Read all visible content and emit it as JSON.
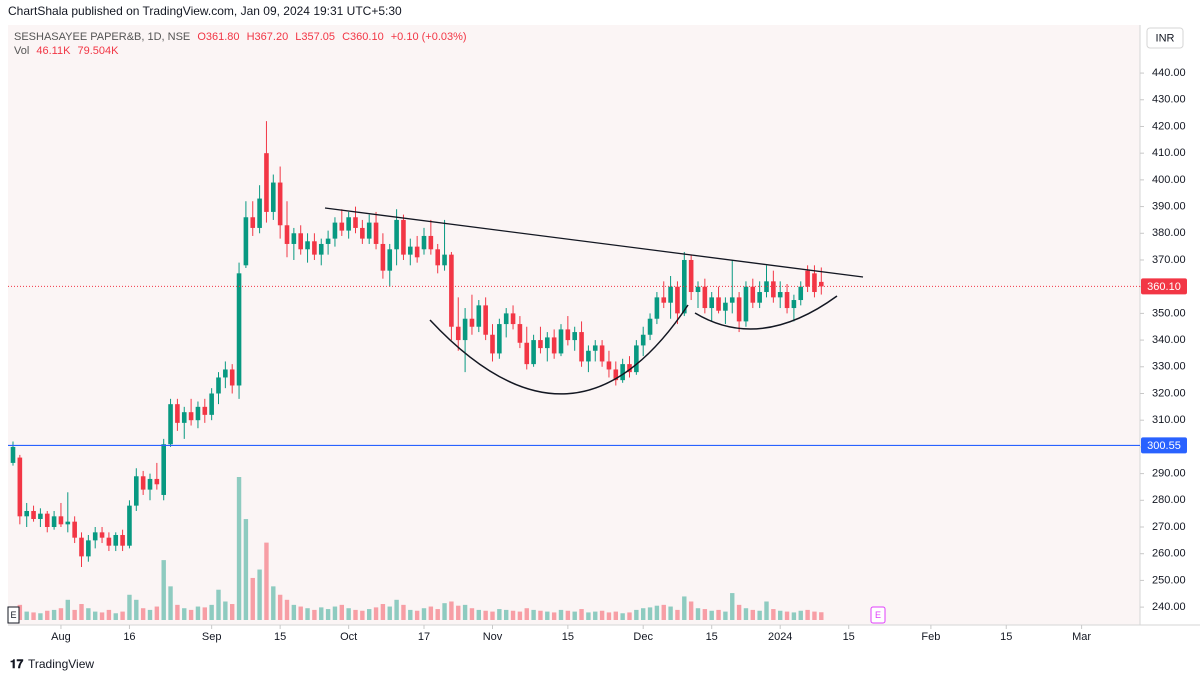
{
  "header": {
    "publisher": "ChartShala published on TradingView.com, Jan 09, 2024 19:31 UTC+5:30",
    "symbol": "SESHASAYEE PAPER&B, 1D, NSE",
    "open": "O361.80",
    "high": "H367.20",
    "low": "L357.05",
    "close": "C360.10",
    "change": "+0.10 (+0.03%)",
    "vol_label": "Vol",
    "volume": "46.11K",
    "volume_ma": "79.504K"
  },
  "currency": "INR",
  "footer": "TradingView",
  "earnings_markers": [
    "E",
    "E"
  ],
  "chart_data": {
    "type": "candlestick",
    "up_color": "#089981",
    "down_color": "#f23645",
    "grid": false,
    "ylim": [
      233.3,
      458
    ],
    "yticks": [
      {
        "value": 240,
        "label": "240.00"
      },
      {
        "value": 250,
        "label": "250.00"
      },
      {
        "value": 260,
        "label": "260.00"
      },
      {
        "value": 270,
        "label": "270.00"
      },
      {
        "value": 280,
        "label": "280.00"
      },
      {
        "value": 290,
        "label": "290.00"
      },
      {
        "value": 300,
        "label": "300.00"
      },
      {
        "value": 310,
        "label": "310.00"
      },
      {
        "value": 320,
        "label": "320.00"
      },
      {
        "value": 330,
        "label": "330.00"
      },
      {
        "value": 340,
        "label": "340.00"
      },
      {
        "value": 350,
        "label": "350.00"
      },
      {
        "value": 360,
        "label": "360.00"
      },
      {
        "value": 370,
        "label": "370.00"
      },
      {
        "value": 380,
        "label": "380.00"
      },
      {
        "value": 390,
        "label": "390.00"
      },
      {
        "value": 400,
        "label": "400.00"
      },
      {
        "value": 410,
        "label": "410.00"
      },
      {
        "value": 420,
        "label": "420.00"
      },
      {
        "value": 430,
        "label": "430.00"
      },
      {
        "value": 440,
        "label": "440.00"
      }
    ],
    "last_price": {
      "value": 360.1,
      "label": "360.10",
      "color": "#f23645"
    },
    "hline": {
      "value": 300.55,
      "label": "300.55",
      "color": "#2962ff"
    },
    "categories": [
      null,
      null,
      null,
      null,
      null,
      null,
      null,
      "Aug",
      null,
      null,
      null,
      null,
      null,
      null,
      null,
      null,
      null,
      "16",
      null,
      null,
      null,
      null,
      null,
      null,
      null,
      null,
      null,
      null,
      null,
      "Sep",
      null,
      null,
      null,
      null,
      null,
      null,
      null,
      null,
      null,
      "15",
      null,
      null,
      null,
      null,
      null,
      null,
      null,
      null,
      null,
      "Oct",
      null,
      null,
      null,
      null,
      null,
      null,
      null,
      null,
      null,
      null,
      "17",
      null,
      null,
      null,
      null,
      null,
      null,
      null,
      null,
      null,
      "Nov",
      null,
      null,
      null,
      null,
      null,
      null,
      null,
      null,
      null,
      null,
      "15",
      null,
      null,
      null,
      null,
      null,
      null,
      null,
      null,
      null,
      null,
      "Dec",
      null,
      null,
      null,
      null,
      null,
      null,
      null,
      null,
      null,
      "15",
      null,
      null,
      null,
      null,
      null,
      null,
      null,
      null,
      null,
      "2024",
      null,
      null,
      null,
      null,
      null,
      null,
      null,
      null,
      null,
      "15",
      null,
      null,
      null,
      null,
      null,
      null,
      null,
      null,
      null,
      null,
      null,
      "Feb",
      null,
      null,
      null,
      null,
      null,
      null,
      null,
      null,
      null,
      null,
      "15",
      null,
      null,
      null,
      null,
      null,
      null,
      null,
      null,
      null,
      null,
      "Mar",
      null,
      null,
      null
    ],
    "open": [
      294,
      296,
      274,
      276,
      273,
      275,
      270,
      274,
      271,
      272,
      266,
      259,
      265,
      268,
      266,
      263,
      267,
      263,
      278,
      289,
      284,
      288,
      282,
      301,
      316,
      309,
      313,
      310,
      315,
      312,
      320,
      326,
      329,
      323,
      368,
      386,
      382,
      410,
      388,
      399,
      383,
      376,
      380,
      374,
      377,
      372,
      376,
      378,
      384,
      381,
      386,
      382,
      378,
      384,
      376,
      366,
      374,
      385,
      372,
      375,
      374,
      379,
      374,
      368,
      372,
      345,
      340,
      348,
      345,
      353,
      342,
      335,
      346,
      350,
      346,
      339,
      331,
      340,
      337,
      341,
      335,
      344,
      340,
      343,
      332,
      336,
      338,
      332,
      329,
      325,
      331,
      328,
      338,
      342,
      348,
      356,
      354,
      360,
      350,
      370,
      358,
      360,
      352,
      356,
      351,
      354,
      356,
      347,
      360,
      354,
      358,
      362,
      356,
      358,
      352,
      355,
      366,
      365,
      361.8,
      null,
      null,
      null,
      null,
      null,
      null,
      null,
      null,
      null,
      null,
      null,
      null,
      null,
      null,
      null,
      null,
      null,
      null,
      null,
      null,
      null,
      null,
      null,
      null,
      null,
      null,
      null,
      null,
      null,
      null,
      null,
      null,
      null,
      null,
      null,
      null,
      null,
      null,
      null,
      null,
      null
    ],
    "high": [
      302,
      297,
      279,
      278,
      277,
      276,
      276,
      279,
      283,
      274,
      268,
      267,
      270,
      270,
      268,
      268,
      269,
      280,
      292,
      291,
      290,
      294,
      303,
      318,
      318,
      315,
      318,
      317,
      318,
      322,
      328,
      332,
      331,
      369,
      392,
      392,
      398,
      422,
      402,
      405,
      392,
      382,
      383,
      380,
      380,
      378,
      381,
      386,
      389,
      388,
      390,
      385,
      387,
      388,
      380,
      376,
      389,
      387,
      378,
      379,
      382,
      385,
      376,
      385,
      373,
      356,
      352,
      357,
      355,
      356,
      346,
      348,
      352,
      353,
      349,
      345,
      342,
      345,
      343,
      344,
      346,
      349,
      345,
      347,
      338,
      340,
      340,
      336,
      332,
      333,
      334,
      340,
      345,
      350,
      358,
      362,
      364,
      362,
      373,
      372,
      362,
      363,
      358,
      360,
      356,
      370,
      358,
      362,
      363,
      362,
      368,
      366,
      362,
      361,
      357,
      362,
      368,
      368,
      367.2,
      null,
      null,
      null,
      null,
      null,
      null,
      null,
      null,
      null,
      null,
      null,
      null,
      null,
      null,
      null,
      null,
      null,
      null,
      null,
      null,
      null,
      null,
      null,
      null,
      null,
      null,
      null,
      null,
      null,
      null,
      null,
      null,
      null,
      null,
      null,
      null,
      null,
      null,
      null,
      null,
      null
    ],
    "low": [
      293,
      271,
      270,
      272,
      270,
      268,
      269,
      270,
      268,
      264,
      255,
      257,
      262,
      264,
      261,
      261,
      261,
      262,
      276,
      282,
      280,
      284,
      280,
      300,
      306,
      303,
      308,
      307,
      309,
      310,
      316,
      322,
      320,
      318,
      367,
      379,
      380,
      384,
      385,
      378,
      371,
      370,
      372,
      369,
      370,
      368,
      372,
      375,
      379,
      378,
      380,
      376,
      376,
      374,
      363,
      360,
      368,
      370,
      368,
      369,
      372,
      372,
      365,
      366,
      340,
      336,
      328,
      342,
      343,
      340,
      332,
      333,
      341,
      344,
      337,
      329,
      330,
      335,
      332,
      333,
      334,
      338,
      336,
      330,
      328,
      332,
      330,
      326,
      323,
      324,
      326,
      327,
      334,
      340,
      346,
      352,
      348,
      346,
      349,
      355,
      352,
      350,
      347,
      350,
      346,
      350,
      343,
      345,
      352,
      352,
      356,
      354,
      352,
      350,
      347,
      353,
      358,
      356,
      357.05,
      null,
      null,
      null,
      null,
      null,
      null,
      null,
      null,
      null,
      null,
      null,
      null,
      null,
      null,
      null,
      null,
      null,
      null,
      null,
      null,
      null,
      null,
      null,
      null,
      null,
      null,
      null,
      null,
      null,
      null,
      null,
      null,
      null,
      null,
      null,
      null,
      null,
      null,
      null,
      null,
      null
    ],
    "close": [
      300,
      274,
      276,
      273,
      275,
      270,
      274,
      271,
      272,
      266,
      259,
      265,
      268,
      266,
      263,
      267,
      263,
      278,
      289,
      284,
      288,
      286,
      301,
      316,
      309,
      313,
      310,
      315,
      312,
      320,
      326,
      329,
      323,
      365,
      386,
      382,
      393,
      388,
      399,
      383,
      376,
      380,
      374,
      377,
      372,
      376,
      378,
      384,
      381,
      386,
      382,
      378,
      384,
      376,
      366,
      374,
      385,
      372,
      375,
      371,
      379,
      374,
      368,
      372,
      345,
      340,
      348,
      345,
      353,
      342,
      335,
      346,
      350,
      346,
      339,
      331,
      340,
      337,
      341,
      335,
      344,
      340,
      343,
      332,
      336,
      338,
      332,
      329,
      325,
      331,
      328,
      338,
      342,
      348,
      356,
      354,
      360,
      350,
      370,
      358,
      360,
      352,
      356,
      351,
      354,
      356,
      347,
      360,
      354,
      358,
      362,
      356,
      358,
      352,
      355,
      360,
      360,
      358,
      360.1,
      null,
      null,
      null,
      null,
      null,
      null,
      null,
      null,
      null,
      null,
      null,
      null,
      null,
      null,
      null,
      null,
      null,
      null,
      null,
      null,
      null,
      null,
      null,
      null,
      null,
      null,
      null,
      null,
      null,
      null,
      null,
      null,
      null,
      null,
      null,
      null,
      null,
      null,
      null,
      null,
      null
    ],
    "volume": [
      80000,
      90000,
      50000,
      45000,
      40000,
      55000,
      60000,
      70000,
      120000,
      60000,
      95000,
      70000,
      50000,
      45000,
      60000,
      40000,
      50000,
      150000,
      120000,
      70000,
      60000,
      80000,
      356000,
      200000,
      90000,
      70000,
      60000,
      80000,
      75000,
      90000,
      180000,
      110000,
      95000,
      850000,
      600000,
      250000,
      300000,
      460000,
      200000,
      150000,
      120000,
      90000,
      80000,
      70000,
      60000,
      75000,
      65000,
      80000,
      90000,
      70000,
      60000,
      55000,
      65000,
      75000,
      95000,
      80000,
      120000,
      90000,
      60000,
      55000,
      70000,
      80000,
      65000,
      100000,
      110000,
      85000,
      90000,
      70000,
      60000,
      55000,
      50000,
      65000,
      60000,
      55000,
      50000,
      70000,
      60000,
      55000,
      50000,
      45000,
      60000,
      55000,
      50000,
      65000,
      45000,
      50000,
      55000,
      45000,
      50000,
      40000,
      45000,
      60000,
      70000,
      75000,
      85000,
      90000,
      80000,
      60000,
      140000,
      110000,
      70000,
      65000,
      55000,
      60000,
      50000,
      160000,
      90000,
      70000,
      60000,
      55000,
      110000,
      65000,
      55000,
      50000,
      45000,
      55000,
      60000,
      50000,
      46110,
      null,
      null,
      null,
      null,
      null,
      null,
      null,
      null,
      null,
      null,
      null,
      null,
      null,
      null,
      null,
      null,
      null,
      null,
      null,
      null,
      null,
      null,
      null,
      null,
      null,
      null,
      null,
      null,
      null,
      null,
      null,
      null,
      null,
      null,
      null,
      null,
      null,
      null,
      null,
      null,
      null
    ]
  }
}
